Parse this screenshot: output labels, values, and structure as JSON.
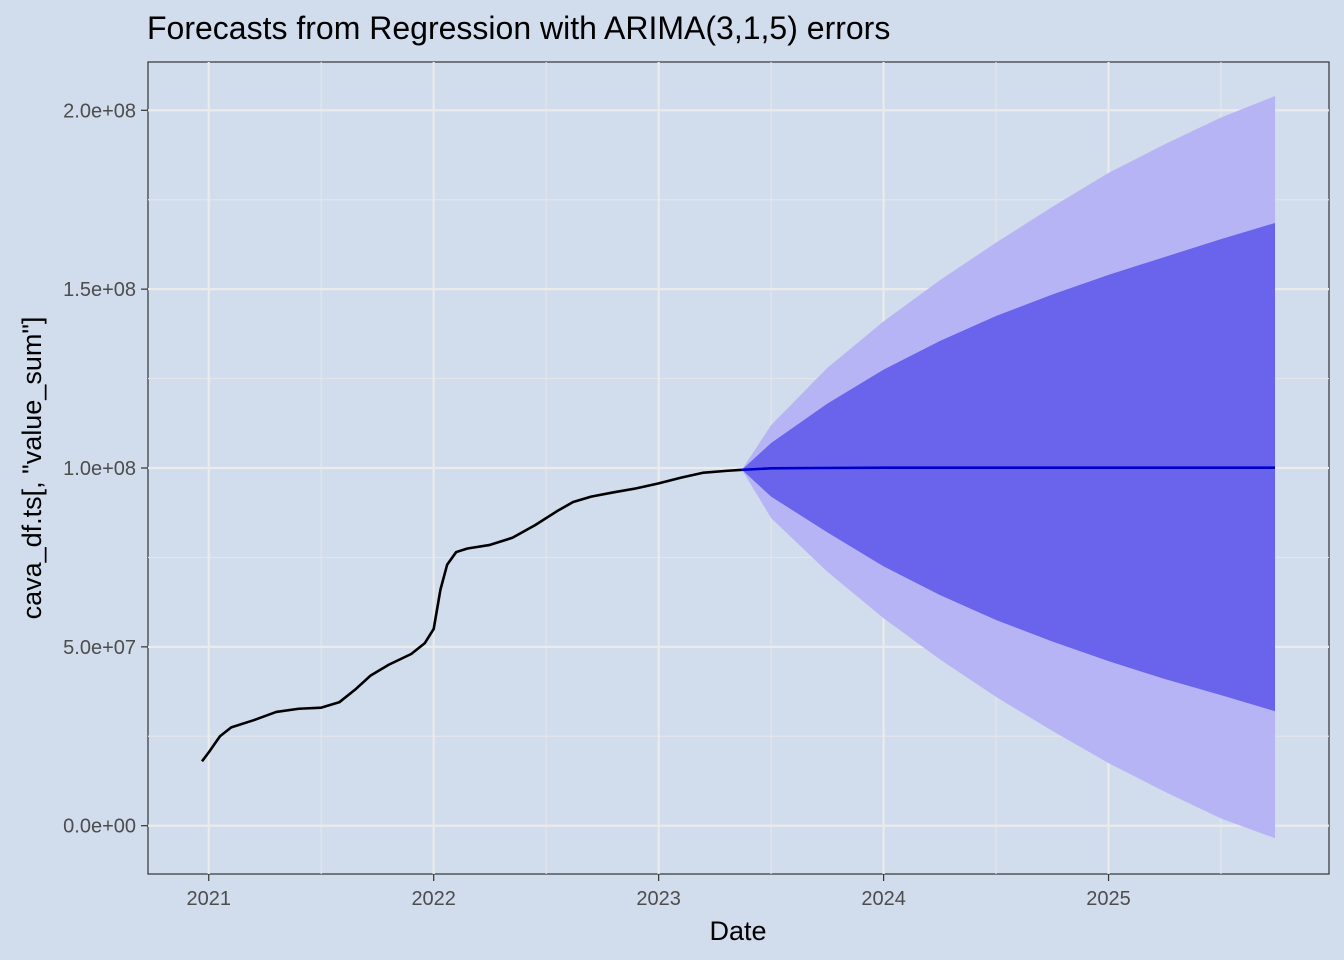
{
  "chart_data": {
    "type": "line",
    "title": "Forecasts from Regression with ARIMA(3,1,5) errors",
    "xlabel": "Date",
    "ylabel": "cava_df.ts[, \"value_sum\"]",
    "xlim": [
      2020.73,
      2025.98
    ],
    "ylim": [
      -13500000,
      213500000
    ],
    "x_ticks": [
      2021,
      2022,
      2023,
      2024,
      2025
    ],
    "x_tick_labels": [
      "2021",
      "2022",
      "2023",
      "2024",
      "2025"
    ],
    "y_ticks": [
      0,
      50000000,
      100000000,
      150000000,
      200000000
    ],
    "y_tick_labels": [
      "0.0e+00",
      "5.0e+07",
      "1.0e+08",
      "1.5e+08",
      "2.0e+08"
    ],
    "grid": true,
    "legend": "none",
    "colors": {
      "background": "#d1dced",
      "grid_major": "#ebebeb",
      "grid_minor": "#e3e5ea",
      "history": "#000000",
      "forecast_mean": "#0000cc",
      "band_80": "#6a63eb",
      "band_95": "#b6b4f5"
    },
    "series": [
      {
        "role": "history",
        "x": [
          2020.97,
          2021.0,
          2021.05,
          2021.1,
          2021.2,
          2021.3,
          2021.4,
          2021.5,
          2021.58,
          2021.65,
          2021.72,
          2021.8,
          2021.9,
          2021.96,
          2022.0,
          2022.03,
          2022.06,
          2022.1,
          2022.15,
          2022.25,
          2022.35,
          2022.45,
          2022.55,
          2022.62,
          2022.7,
          2022.8,
          2022.9,
          2023.0,
          2023.1,
          2023.2,
          2023.3,
          2023.37
        ],
        "y": [
          18000000,
          20500000,
          25000000,
          27500000,
          29500000,
          31800000,
          32700000,
          33000000,
          34500000,
          38000000,
          42000000,
          45000000,
          48000000,
          51000000,
          55000000,
          66000000,
          73000000,
          76500000,
          77500000,
          78500000,
          80500000,
          84000000,
          88000000,
          90500000,
          92000000,
          93200000,
          94300000,
          95700000,
          97300000,
          98700000,
          99200000,
          99500000
        ]
      },
      {
        "role": "forecast-mean",
        "x": [
          2023.37,
          2023.5,
          2023.7,
          2024.0,
          2024.5,
          2025.0,
          2025.5,
          2025.74
        ],
        "y": [
          99500000,
          99900000,
          100000000,
          100100000,
          100100000,
          100100000,
          100100000,
          100100000
        ]
      }
    ],
    "bands": [
      {
        "level": "95%",
        "x": [
          2023.37,
          2023.5,
          2023.75,
          2024.0,
          2024.25,
          2024.5,
          2024.75,
          2025.0,
          2025.25,
          2025.5,
          2025.74
        ],
        "upper": [
          99500000,
          112000000,
          128000000,
          141000000,
          152500000,
          163000000,
          173000000,
          182500000,
          190500000,
          198000000,
          204000000
        ],
        "lower": [
          99500000,
          86000000,
          71000000,
          58000000,
          46500000,
          36000000,
          26500000,
          17500000,
          9500000,
          2000000,
          -3500000
        ]
      },
      {
        "level": "80%",
        "x": [
          2023.37,
          2023.5,
          2023.75,
          2024.0,
          2024.25,
          2024.5,
          2024.75,
          2025.0,
          2025.25,
          2025.5,
          2025.74
        ],
        "upper": [
          99500000,
          107000000,
          118000000,
          127500000,
          135500000,
          142500000,
          148500000,
          154000000,
          159000000,
          164000000,
          168500000
        ],
        "lower": [
          99500000,
          92000000,
          82000000,
          72500000,
          64500000,
          57500000,
          51500000,
          46000000,
          41000000,
          36500000,
          32000000
        ]
      }
    ]
  }
}
